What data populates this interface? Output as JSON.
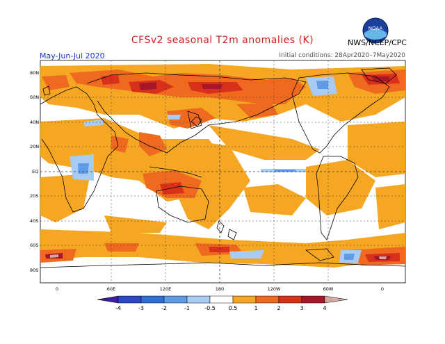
{
  "header": {
    "title": "CFSv2 seasonal T2m anomalies (K)",
    "period": "May-Jun-Jul 2020",
    "initial_conditions": "Initial conditions: 28Apr2020–7May2020",
    "agency": "NWS/NCEP/CPC",
    "logo_text": "NOAA"
  },
  "map": {
    "projection": "equirectangular",
    "lat_labels": [
      "80N",
      "60N",
      "40N",
      "20N",
      "EQ",
      "20S",
      "40S",
      "60S",
      "80S"
    ],
    "lon_labels": [
      "0",
      "60E",
      "120E",
      "180",
      "120W",
      "60W",
      "0"
    ],
    "colors": {
      "anom_05_1": "#f5a623",
      "anom_1_2": "#ef6a1f",
      "anom_2_3": "#d9301b",
      "anom_3_4": "#a8162a",
      "anom_4plus": "#d5a9a0",
      "cold_05_1": "#a7cbf2",
      "cold_1_2": "#5f9be6",
      "cold_2_3": "#2f6ed6",
      "land_line": "#000000",
      "ocean": "#ffffff"
    }
  },
  "colorbar": {
    "labels": [
      "-4",
      "-3",
      "-2",
      "-1",
      "-0.5",
      "0.5",
      "1",
      "2",
      "3",
      "4"
    ],
    "colors": [
      "#3a1e9c",
      "#2a47c8",
      "#2f6ed6",
      "#5f9be6",
      "#a7cbf2",
      "#ffffff",
      "#f5a623",
      "#ef6a1f",
      "#d9301b",
      "#a8162a",
      "#d5a9a0"
    ]
  }
}
